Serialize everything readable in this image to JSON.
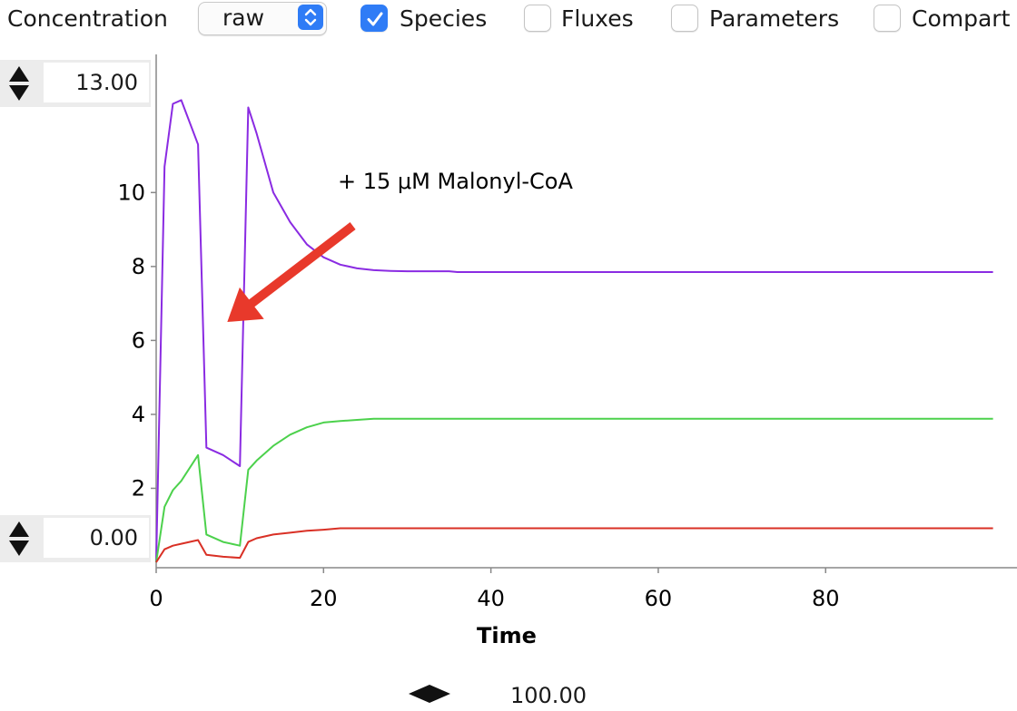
{
  "toolbar": {
    "concentration_label": "Concentration",
    "scale_select": {
      "value": "raw"
    },
    "checkboxes": [
      {
        "label": "Species",
        "checked": true
      },
      {
        "label": "Fluxes",
        "checked": false
      },
      {
        "label": "Parameters",
        "checked": false
      },
      {
        "label": "Compart",
        "checked": false
      }
    ]
  },
  "y_axis_controls": {
    "max_value": "13.00",
    "min_value": "0.00"
  },
  "time_control": {
    "value": "100.00"
  },
  "colors": {
    "accent": "#2f7cf6",
    "series_purple": "#8a2be2",
    "series_green": "#4cd14c",
    "series_red": "#d93025",
    "arrow": "#e8392b"
  },
  "chart_data": {
    "type": "line",
    "xlabel": "Time",
    "ylabel": "",
    "xlim": [
      0,
      102
    ],
    "ylim": [
      0,
      13
    ],
    "x_ticks": [
      0,
      20,
      40,
      60,
      80
    ],
    "y_ticks": [
      2,
      4,
      6,
      8,
      10
    ],
    "grid": false,
    "annotation": {
      "text": "+ 15 μM Malonyl-CoA",
      "arrow_from": [
        23.5,
        9.1
      ],
      "arrow_to": [
        8.5,
        6.5
      ]
    },
    "series": [
      {
        "color": "#8a2be2",
        "x": [
          0,
          1,
          2,
          3,
          5,
          6,
          8,
          10,
          11,
          12,
          14,
          16,
          18,
          20,
          22,
          24,
          26,
          28,
          30,
          35,
          36,
          40,
          100
        ],
        "y": [
          0,
          10.7,
          12.4,
          12.5,
          11.3,
          3.1,
          2.9,
          2.6,
          12.3,
          11.6,
          10.0,
          9.2,
          8.6,
          8.25,
          8.05,
          7.95,
          7.9,
          7.88,
          7.87,
          7.87,
          7.85,
          7.85,
          7.85
        ]
      },
      {
        "color": "#4cd14c",
        "x": [
          0,
          1,
          2,
          3,
          5,
          6,
          8,
          10,
          11,
          12,
          14,
          16,
          18,
          20,
          22,
          24,
          26,
          30,
          40,
          100
        ],
        "y": [
          0,
          1.5,
          1.95,
          2.2,
          2.9,
          0.75,
          0.55,
          0.45,
          2.5,
          2.75,
          3.15,
          3.45,
          3.65,
          3.78,
          3.82,
          3.85,
          3.88,
          3.88,
          3.88,
          3.88
        ]
      },
      {
        "color": "#d93025",
        "x": [
          0,
          1,
          2,
          3,
          5,
          6,
          8,
          10,
          11,
          12,
          14,
          16,
          18,
          20,
          22,
          24,
          30,
          40,
          100
        ],
        "y": [
          0,
          0.35,
          0.45,
          0.5,
          0.6,
          0.2,
          0.15,
          0.12,
          0.55,
          0.65,
          0.75,
          0.8,
          0.85,
          0.88,
          0.92,
          0.92,
          0.92,
          0.92,
          0.92
        ]
      }
    ]
  }
}
